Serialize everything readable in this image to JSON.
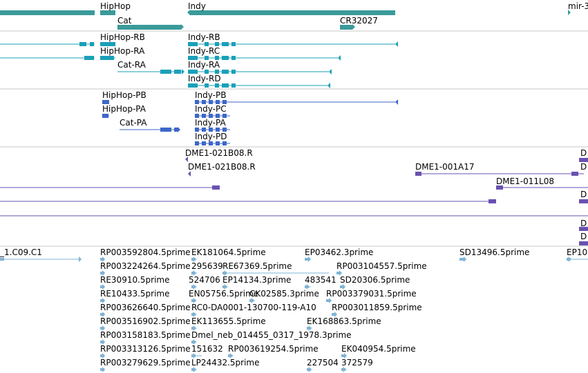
{
  "colors": {
    "gene": "#3a9a9a",
    "transcript": "#1aa0b8",
    "cds": "#3d67c9",
    "clone": "#6a52b0",
    "est": "#7fb3d5",
    "divider": "#c8c8c8"
  },
  "tracks": {
    "genes": {
      "hiphop": "HipHop",
      "indy": "Indy",
      "mir": "mir-3",
      "cat": "Cat",
      "cr32027": "CR32027"
    },
    "transcripts": {
      "hiphop_rb": "HipHop-RB",
      "hiphop_ra": "HipHop-RA",
      "cat_ra": "Cat-RA",
      "indy_rb": "Indy-RB",
      "indy_rc": "Indy-RC",
      "indy_ra": "Indy-RA",
      "indy_rd": "Indy-RD"
    },
    "proteins": {
      "hiphop_pb": "HipHop-PB",
      "hiphop_pa": "HipHop-PA",
      "cat_pa": "Cat-PA",
      "indy_pb": "Indy-PB",
      "indy_pc": "Indy-PC",
      "indy_pa": "Indy-PA",
      "indy_pd": "Indy-PD"
    },
    "clones": {
      "c1": "DME1-021B08.R",
      "c2": "DME1-021B08.R",
      "c3": "DME1-001A17",
      "c4": "DME1-011L08",
      "d1": "D",
      "d2": "D",
      "d3": "D",
      "d4": "D",
      "d5": "D"
    },
    "ests": {
      "e0": "_1.C09.C1",
      "e1": "RP003592804.5prime",
      "e2": "EK181064.5prime",
      "e3": "EP03462.3prime",
      "e4": "SD13496.5prime",
      "e5": "EP10",
      "e6": "RP003224264.5prime",
      "e7": "295639",
      "e8": "RE67369.5prime",
      "e9": "RP003104557.5prime",
      "e10": "RE30910.5prime",
      "e11": "524706",
      "e12": "EP14134.3prime",
      "e13": "483541",
      "e14": "SD20306.5prime",
      "e15": "RE10433.5prime",
      "e16": "EN05756.5prime",
      "e17": "CK02585.3prime",
      "e18": "RP003379031.5prime",
      "e19": "RP003626640.5prime",
      "e20": "RC0-DA0001-130700-119-A10",
      "e21": "RP003011859.5prime",
      "e22": "RP003516902.5prime",
      "e23": "EK113655.5prime",
      "e24": "EK168863.5prime",
      "e25": "RP003158183.5prime",
      "e26": "Dmel_neb_014455_0317_1978.3prime",
      "e27": "RP003313126.5prime",
      "e28": "151632",
      "e29": "RP003619254.5prime",
      "e30": "EK040954.5prime",
      "e31": "RP003279629.5prime",
      "e32": "LP24432.5prime",
      "e33": "227504",
      "e34": "372579"
    }
  }
}
